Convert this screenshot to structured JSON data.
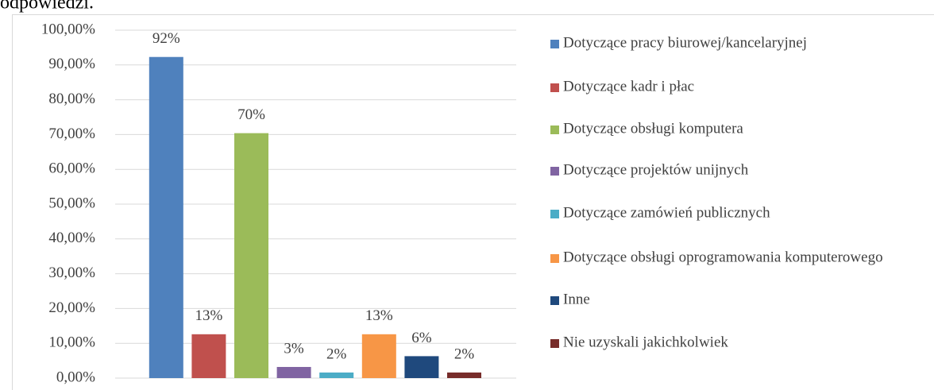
{
  "chart_data": {
    "type": "bar",
    "title": "odpowiedzi.",
    "series": [
      {
        "name": "Dotyczące pracy biurowej/kancelaryjnej",
        "color": "#4f81bd",
        "values": [
          92.3
        ],
        "value_labels": [
          "92%"
        ]
      },
      {
        "name": "Dotyczące kadr i płac",
        "color": "#c0504d",
        "values": [
          12.6
        ],
        "value_labels": [
          "13%"
        ]
      },
      {
        "name": "Dotyczące obsługi komputera",
        "color": "#9bbb59",
        "values": [
          70.4
        ],
        "value_labels": [
          "70%"
        ]
      },
      {
        "name": "Dotyczące projektów unijnych",
        "color": "#8064a2",
        "values": [
          3.2
        ],
        "value_labels": [
          "3%"
        ]
      },
      {
        "name": "Dotyczące zamówień publicznych",
        "color": "#4bacc6",
        "values": [
          1.6
        ],
        "value_labels": [
          "2%"
        ]
      },
      {
        "name": "Dotyczące obsługi oprogramowania komputerowego",
        "color": "#f79646",
        "values": [
          12.6
        ],
        "value_labels": [
          "13%"
        ]
      },
      {
        "name": "Inne",
        "color": "#1f497d",
        "values": [
          6.3
        ],
        "value_labels": [
          "6%"
        ]
      },
      {
        "name": "Nie uzyskali jakichkolwiek",
        "color": "#772c2a",
        "values": [
          1.6
        ],
        "value_labels": [
          "2%"
        ]
      }
    ],
    "ylim": [
      0,
      100
    ],
    "yticks": [
      {
        "value": 0,
        "label": "0,00%"
      },
      {
        "value": 10,
        "label": "10,00%"
      },
      {
        "value": 20,
        "label": "20,00%"
      },
      {
        "value": 30,
        "label": "30,00%"
      },
      {
        "value": 40,
        "label": "40,00%"
      },
      {
        "value": 50,
        "label": "50,00%"
      },
      {
        "value": 60,
        "label": "60,00%"
      },
      {
        "value": 70,
        "label": "70,00%"
      },
      {
        "value": 80,
        "label": "80,00%"
      },
      {
        "value": 90,
        "label": "90,00%"
      },
      {
        "value": 100,
        "label": "100,00%"
      }
    ],
    "grid": true,
    "legend": "right"
  }
}
